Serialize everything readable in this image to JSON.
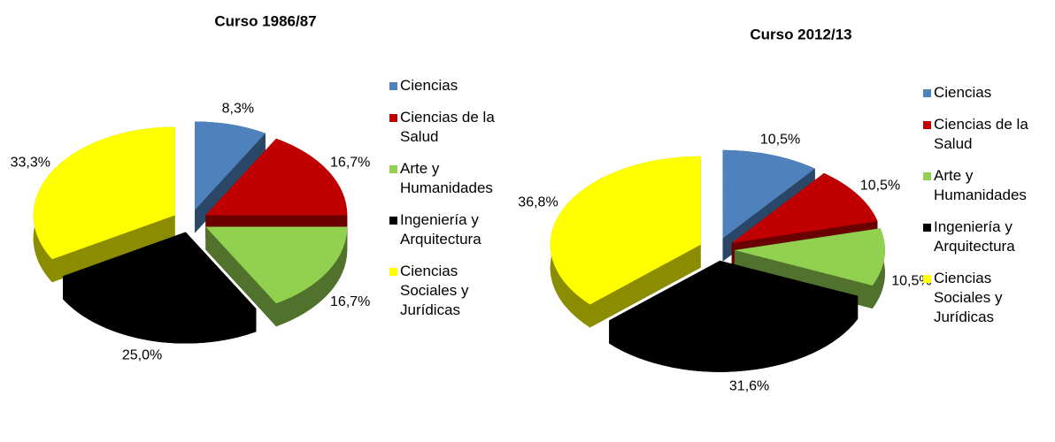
{
  "chart_data": [
    {
      "type": "pie",
      "title": "Curso 1986/87",
      "categories": [
        "Ciencias",
        "Ciencias de la Salud",
        "Arte y Humanidades",
        "Ingeniería y Arquitectura",
        "Ciencias Sociales y Jurídicas"
      ],
      "values": [
        8.3,
        16.7,
        16.7,
        25.0,
        33.3
      ],
      "value_labels": [
        "8,3%",
        "16,7%",
        "16,7%",
        "25,0%",
        "33,3%"
      ],
      "colors": [
        "#4f81bd",
        "#c00000",
        "#92d050",
        "#000000",
        "#ffff00"
      ]
    },
    {
      "type": "pie",
      "title": "Curso 2012/13",
      "categories": [
        "Ciencias",
        "Ciencias de la Salud",
        "Arte y Humanidades",
        "Ingeniería y Arquitectura",
        "Ciencias Sociales y Jurídicas"
      ],
      "values": [
        10.5,
        10.5,
        10.5,
        31.6,
        36.8
      ],
      "value_labels": [
        "10,5%",
        "10,5%",
        "10,5%",
        "31,6%",
        "36,8%"
      ],
      "colors": [
        "#4f81bd",
        "#c00000",
        "#92d050",
        "#000000",
        "#ffff00"
      ]
    }
  ]
}
